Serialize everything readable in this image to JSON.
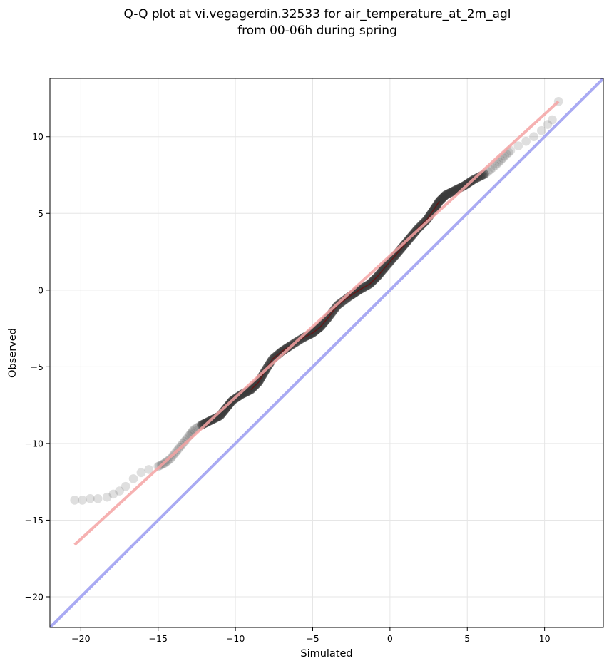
{
  "chart_data": {
    "type": "scatter",
    "title_lines": [
      "Q-Q plot at vi.vegagerdin.32533 for air_temperature_at_2m_agl",
      "from 00-06h during spring"
    ],
    "xlabel": "Simulated",
    "ylabel": "Observed",
    "xlim": [
      -22,
      13.8
    ],
    "ylim": [
      -22,
      13.8
    ],
    "xticks": [
      -20,
      -15,
      -10,
      -5,
      0,
      5,
      10
    ],
    "yticks": [
      -20,
      -15,
      -10,
      -5,
      0,
      5,
      10
    ],
    "tick_labels": [
      "−20",
      "−15",
      "−10",
      "−5",
      "0",
      "5",
      "10"
    ],
    "grid": true,
    "quantile_anchors": [
      [
        -20.4,
        -13.7
      ],
      [
        -19.9,
        -13.7
      ],
      [
        -19.4,
        -13.6
      ],
      [
        -18.9,
        -13.6
      ],
      [
        -18.3,
        -13.5
      ],
      [
        -17.9,
        -13.3
      ],
      [
        -17.5,
        -13.1
      ],
      [
        -17.1,
        -12.8
      ],
      [
        -16.6,
        -12.3
      ],
      [
        -16.1,
        -11.9
      ],
      [
        -15.6,
        -11.7
      ],
      [
        -15.0,
        -11.5
      ],
      [
        -14.6,
        -11.3
      ],
      [
        -14.2,
        -11.0
      ],
      [
        -13.8,
        -10.5
      ],
      [
        -13.4,
        -10.0
      ],
      [
        -13.0,
        -9.5
      ],
      [
        -12.7,
        -9.1
      ],
      [
        -12.2,
        -8.8
      ],
      [
        -11.6,
        -8.5
      ],
      [
        -11.0,
        -8.2
      ],
      [
        -10.6,
        -7.7
      ],
      [
        -10.2,
        -7.2
      ],
      [
        -9.6,
        -6.8
      ],
      [
        -9.0,
        -6.5
      ],
      [
        -8.5,
        -6.0
      ],
      [
        -8.1,
        -5.3
      ],
      [
        -7.6,
        -4.5
      ],
      [
        -7.0,
        -4.0
      ],
      [
        -6.4,
        -3.6
      ],
      [
        -5.6,
        -3.1
      ],
      [
        -5.0,
        -2.8
      ],
      [
        -4.5,
        -2.4
      ],
      [
        -4.0,
        -1.8
      ],
      [
        -3.4,
        -1.0
      ],
      [
        -2.6,
        -0.4
      ],
      [
        -2.0,
        0.0
      ],
      [
        -1.3,
        0.4
      ],
      [
        -0.8,
        0.9
      ],
      [
        -0.3,
        1.5
      ],
      [
        0.3,
        2.2
      ],
      [
        0.8,
        2.8
      ],
      [
        1.3,
        3.4
      ],
      [
        1.8,
        4.0
      ],
      [
        2.4,
        4.6
      ],
      [
        2.8,
        5.2
      ],
      [
        3.2,
        5.8
      ],
      [
        3.6,
        6.2
      ],
      [
        4.2,
        6.5
      ],
      [
        4.8,
        6.8
      ],
      [
        5.4,
        7.2
      ],
      [
        6.2,
        7.6
      ],
      [
        6.8,
        8.1
      ],
      [
        7.3,
        8.6
      ],
      [
        7.8,
        9.1
      ],
      [
        8.3,
        9.4
      ],
      [
        8.8,
        9.7
      ],
      [
        9.3,
        10.0
      ],
      [
        9.8,
        10.4
      ],
      [
        10.2,
        10.8
      ],
      [
        10.5,
        11.1
      ],
      [
        10.9,
        12.3
      ]
    ],
    "fit_line": {
      "x1": -20.4,
      "y1": -16.6,
      "x2": 10.9,
      "y2": 12.3
    },
    "colors": {
      "points": "#3a3a3a",
      "fit_line": "#f4a3a3",
      "identity_line": "#a9aaf3",
      "dense_overlay": "#7a0000",
      "grid": "#e6e6e6"
    }
  }
}
